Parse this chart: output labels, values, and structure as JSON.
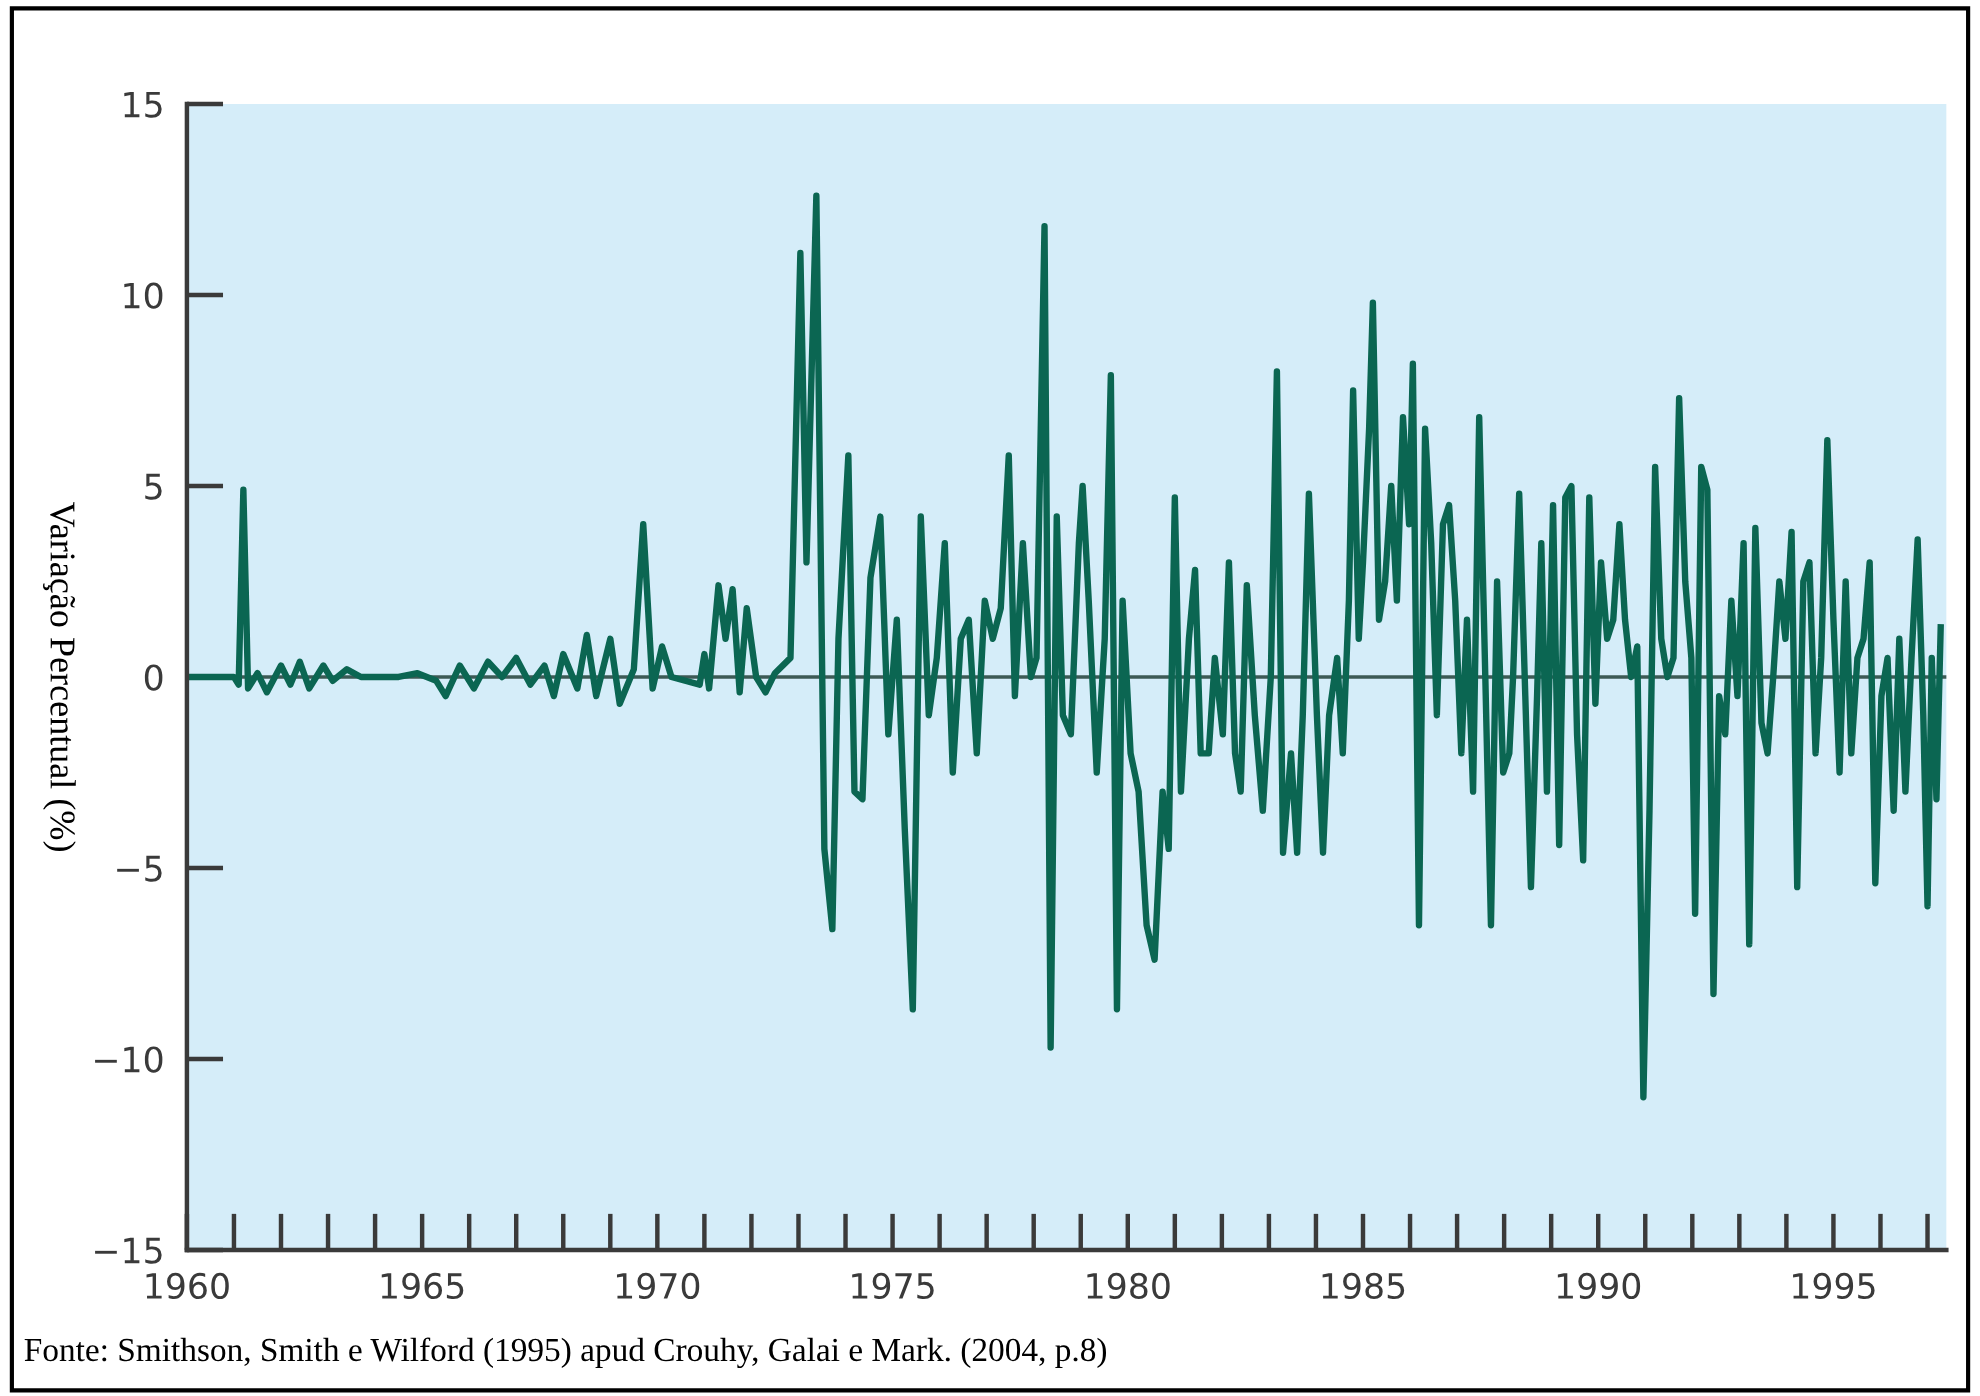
{
  "chart_data": {
    "type": "line",
    "ylabel": "Variação Percentual (%)",
    "annotations": [
      "Fonte: Smithson, Smith e Wilford (1995) apud Crouhy, Galai e Mark. (2004, p.8)"
    ],
    "xlim": [
      1960,
      1997.4
    ],
    "ylim": [
      -15,
      15
    ],
    "xticks": [
      1960,
      1965,
      1970,
      1975,
      1980,
      1985,
      1990,
      1995
    ],
    "yticks": [
      {
        "value": -15,
        "label": "−15"
      },
      {
        "value": -10,
        "label": "−10"
      },
      {
        "value": -5,
        "label": "−5"
      },
      0,
      5,
      10,
      15
    ],
    "ref_lines": [
      {
        "axis": "y",
        "value": 0,
        "label": null,
        "color": "#3c5a55"
      }
    ],
    "grid": false,
    "legend": false,
    "marker": "none",
    "line_style": "solid",
    "x": [
      1960.0,
      1961.0,
      1961.1,
      1961.2,
      1961.3,
      1961.5,
      1961.7,
      1962.0,
      1962.2,
      1962.4,
      1962.6,
      1962.9,
      1963.1,
      1963.4,
      1963.7,
      1964.5,
      1964.9,
      1965.3,
      1965.5,
      1965.8,
      1966.1,
      1966.4,
      1966.7,
      1967.0,
      1967.3,
      1967.6,
      1967.8,
      1968.0,
      1968.3,
      1968.5,
      1968.7,
      1969.0,
      1969.2,
      1969.5,
      1969.7,
      1969.9,
      1970.1,
      1970.3,
      1970.9,
      1971.0,
      1971.1,
      1971.3,
      1971.45,
      1971.6,
      1971.75,
      1971.9,
      1972.1,
      1972.3,
      1972.5,
      1972.83,
      1973.04,
      1973.17,
      1973.38,
      1973.55,
      1973.72,
      1973.85,
      1974.06,
      1974.19,
      1974.36,
      1974.53,
      1974.74,
      1974.91,
      1975.09,
      1975.26,
      1975.43,
      1975.6,
      1975.77,
      1975.94,
      1976.11,
      1976.28,
      1976.45,
      1976.62,
      1976.79,
      1976.96,
      1977.13,
      1977.3,
      1977.47,
      1977.6,
      1977.77,
      1977.94,
      1978.06,
      1978.23,
      1978.36,
      1978.49,
      1978.62,
      1978.79,
      1978.96,
      1979.04,
      1979.17,
      1979.34,
      1979.51,
      1979.64,
      1979.77,
      1979.89,
      1980.06,
      1980.23,
      1980.4,
      1980.57,
      1980.74,
      1980.87,
      1981.0,
      1981.13,
      1981.3,
      1981.43,
      1981.55,
      1981.72,
      1981.85,
      1982.02,
      1982.15,
      1982.28,
      1982.4,
      1982.53,
      1982.7,
      1982.87,
      1983.04,
      1983.17,
      1983.3,
      1983.47,
      1983.6,
      1983.72,
      1983.85,
      1984.02,
      1984.15,
      1984.28,
      1984.45,
      1984.57,
      1984.7,
      1984.79,
      1984.91,
      1985.0,
      1985.13,
      1985.21,
      1985.34,
      1985.47,
      1985.6,
      1985.72,
      1985.85,
      1985.98,
      1986.06,
      1986.19,
      1986.32,
      1986.45,
      1986.57,
      1986.7,
      1986.83,
      1986.96,
      1987.09,
      1987.21,
      1987.34,
      1987.47,
      1987.6,
      1987.72,
      1987.85,
      1987.98,
      1988.11,
      1988.19,
      1988.32,
      1988.45,
      1988.57,
      1988.7,
      1988.79,
      1988.91,
      1989.04,
      1989.17,
      1989.3,
      1989.43,
      1989.55,
      1989.68,
      1989.81,
      1989.94,
      1990.06,
      1990.19,
      1990.32,
      1990.45,
      1990.57,
      1990.7,
      1990.83,
      1990.96,
      1991.09,
      1991.21,
      1991.34,
      1991.47,
      1991.6,
      1991.72,
      1991.85,
      1991.98,
      1992.06,
      1992.19,
      1992.32,
      1992.45,
      1992.57,
      1992.7,
      1992.83,
      1992.96,
      1993.09,
      1993.21,
      1993.34,
      1993.47,
      1993.6,
      1993.72,
      1993.85,
      1993.98,
      1994.11,
      1994.23,
      1994.36,
      1994.49,
      1994.62,
      1994.74,
      1994.87,
      1995.0,
      1995.13,
      1995.26,
      1995.38,
      1995.51,
      1995.64,
      1995.77,
      1995.89,
      1996.02,
      1996.15,
      1996.28,
      1996.4,
      1996.53,
      1996.66,
      1996.79,
      1996.91,
      1997.0,
      1997.09,
      1997.19,
      1997.28
    ],
    "series": [
      {
        "color": "#0b6652",
        "values": [
          0,
          0,
          -0.2,
          4.9,
          -0.3,
          0.1,
          -0.4,
          0.3,
          -0.2,
          0.4,
          -0.3,
          0.3,
          -0.1,
          0.2,
          0,
          0,
          0.1,
          -0.1,
          -0.5,
          0.3,
          -0.3,
          0.4,
          0,
          0.5,
          -0.2,
          0.3,
          -0.5,
          0.6,
          -0.3,
          1.1,
          -0.5,
          1.0,
          -0.7,
          0.2,
          4.0,
          -0.3,
          0.8,
          0,
          -0.2,
          0.6,
          -0.3,
          2.4,
          1.0,
          2.3,
          -0.4,
          1.8,
          0,
          -0.4,
          0.1,
          0.5,
          11.1,
          3,
          12.6,
          -4.5,
          -6.6,
          1,
          5.8,
          -3,
          -3.2,
          2.6,
          4.2,
          -1.5,
          1.5,
          -4,
          -8.7,
          4.2,
          -1,
          0.5,
          3.5,
          -2.5,
          1,
          1.5,
          -2,
          2,
          1,
          1.8,
          5.8,
          -0.5,
          3.5,
          0,
          0.5,
          11.8,
          -9.7,
          4.2,
          -1,
          -1.5,
          3.5,
          5,
          2,
          -2.5,
          1,
          7.9,
          -8.7,
          2,
          -2,
          -3,
          -6.5,
          -7.4,
          -3,
          -4.5,
          4.7,
          -3,
          1,
          2.8,
          -2,
          -2,
          0.5,
          -1.5,
          3,
          -2,
          -3,
          2.4,
          -1,
          -3.5,
          0,
          8,
          -4.6,
          -2,
          -4.6,
          -1,
          4.8,
          -1,
          -4.6,
          -1,
          0.5,
          -2,
          2,
          7.5,
          1,
          3,
          6.5,
          9.8,
          1.5,
          2.5,
          5,
          2,
          6.8,
          4,
          8.2,
          -6.5,
          6.5,
          3.5,
          -1,
          4,
          4.5,
          2,
          -2,
          1.5,
          -3,
          6.8,
          0,
          -6.5,
          2.5,
          -2.5,
          -2,
          0,
          4.8,
          -0.5,
          -5.5,
          -0.5,
          3.5,
          -3,
          4.5,
          -4.4,
          4.7,
          5,
          -1.5,
          -4.8,
          4.7,
          -0.7,
          3,
          1,
          1.5,
          4,
          1.5,
          0,
          0.8,
          -11,
          -3.5,
          5.5,
          1,
          0,
          0.5,
          7.3,
          2.5,
          0.5,
          -6.2,
          5.5,
          4.9,
          -8.3,
          -0.5,
          -1.5,
          2,
          -0.5,
          3.5,
          -7,
          3.9,
          -1.2,
          -2,
          0,
          2.5,
          1,
          3.8,
          -5.5,
          2.5,
          3,
          -2,
          0.5,
          6.2,
          1.5,
          -2.5,
          2.5,
          -2,
          0.5,
          1,
          3,
          -5.4,
          -0.5,
          0.5,
          -3.5,
          1,
          -3,
          0.5,
          3.6,
          -1,
          -6,
          0.5,
          -3.2,
          1.3
        ]
      }
    ]
  }
}
